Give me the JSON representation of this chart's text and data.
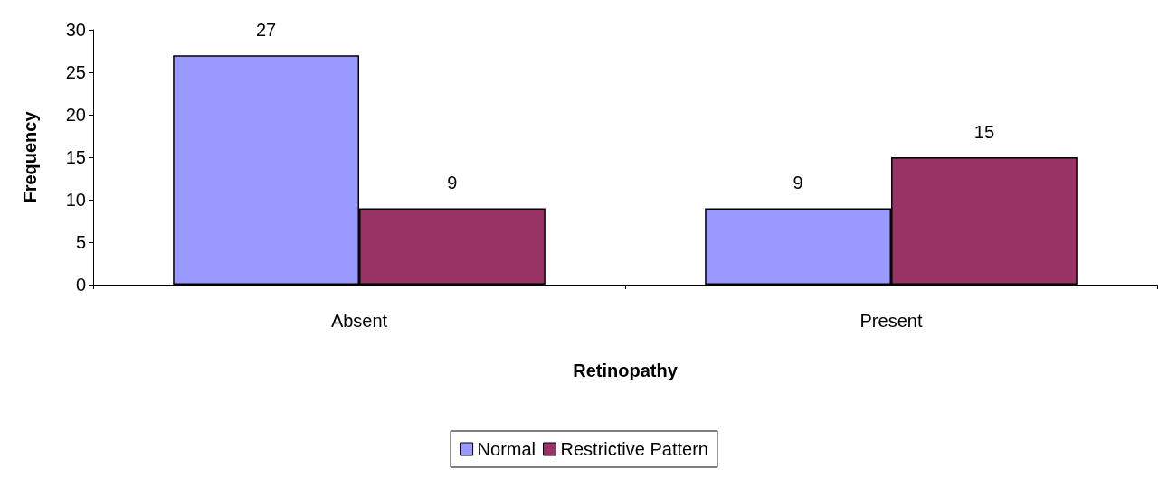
{
  "chart_data": {
    "type": "bar",
    "xlabel": "Retinopathy",
    "ylabel": "Frequency",
    "categories": [
      "Absent",
      "Present"
    ],
    "series": [
      {
        "name": "Normal",
        "color": "#9999ff",
        "values": [
          27,
          9
        ]
      },
      {
        "name": "Restrictive Pattern",
        "color": "#993366",
        "values": [
          9,
          15
        ]
      }
    ],
    "ylim": [
      0,
      30
    ],
    "yticks": [
      0,
      5,
      10,
      15,
      20,
      25,
      30
    ],
    "grid": false,
    "legend": "bottom",
    "data_labels": true
  }
}
